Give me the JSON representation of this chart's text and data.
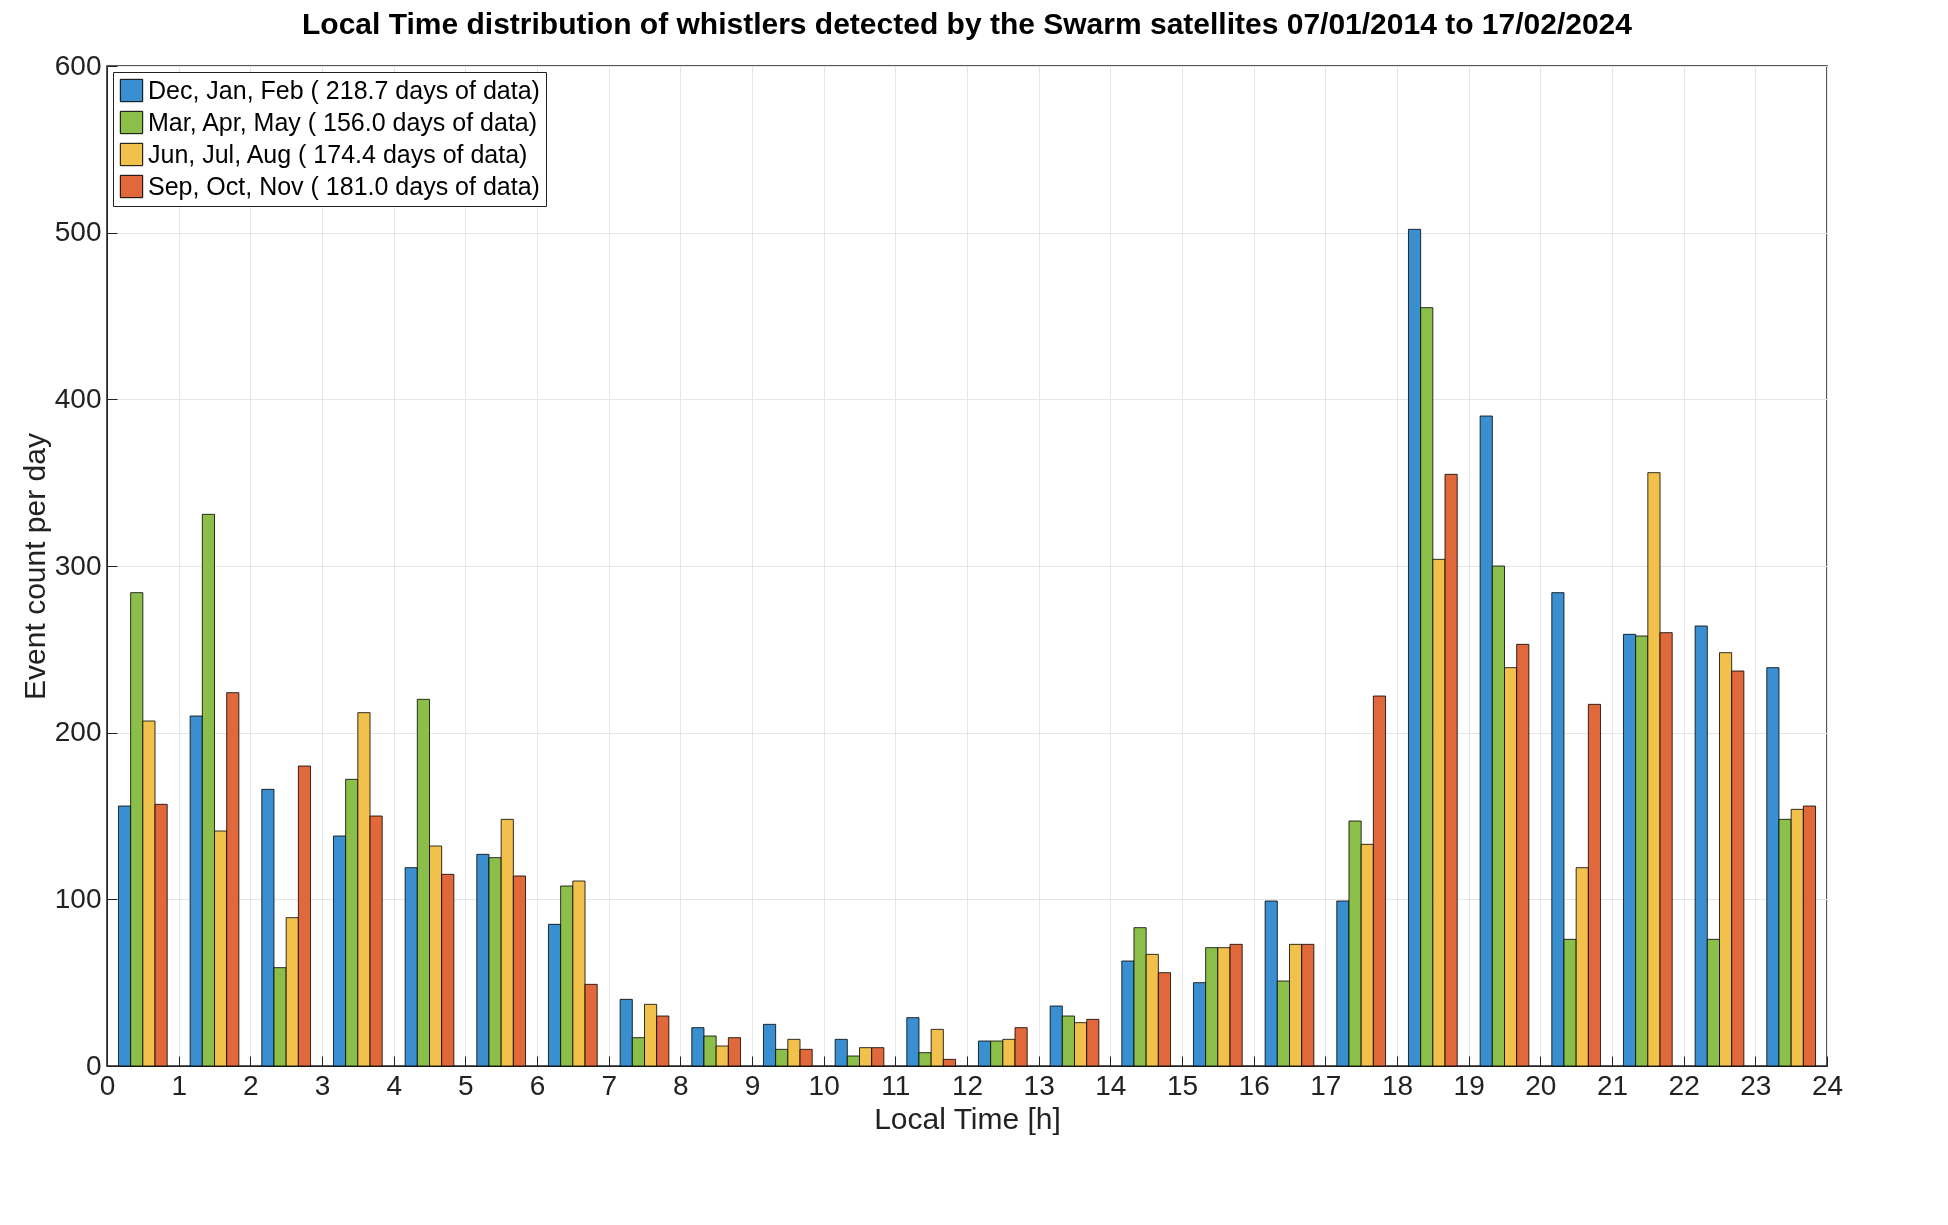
{
  "chart_data": {
    "type": "bar",
    "title": "Local Time distribution of whistlers detected by the Swarm satellites 07/01/2014 to 17/02/2024",
    "xlabel": "Local Time [h]",
    "ylabel": "Event count per day",
    "x": [
      0.5,
      1.5,
      2.5,
      3.5,
      4.5,
      5.5,
      6.5,
      7.5,
      8.5,
      9.5,
      10.5,
      11.5,
      12.5,
      13.5,
      14.5,
      15.5,
      16.5,
      17.5,
      18.5,
      19.5,
      20.5,
      21.5,
      22.5,
      23.5
    ],
    "series": [
      {
        "name": "Dec, Jan, Feb ( 218.7 days of data)",
        "color": "#3a8fd0",
        "values": [
          156,
          210,
          166,
          138,
          119,
          127,
          85,
          40,
          23,
          25,
          16,
          29,
          15,
          36,
          63,
          50,
          99,
          99,
          502,
          390,
          284,
          259,
          264,
          239
        ]
      },
      {
        "name": "Mar, Apr, May ( 156.0 days of data)",
        "color": "#8cbf4a",
        "values": [
          284,
          331,
          59,
          172,
          220,
          125,
          108,
          17,
          18,
          10,
          6,
          8,
          15,
          30,
          83,
          71,
          51,
          147,
          455,
          300,
          76,
          258,
          76,
          148
        ]
      },
      {
        "name": "Jun, Jul, Aug ( 174.4 days of data)",
        "color": "#f2c14b",
        "values": [
          207,
          141,
          89,
          212,
          132,
          148,
          111,
          37,
          12,
          16,
          11,
          22,
          16,
          26,
          67,
          71,
          73,
          133,
          304,
          239,
          119,
          356,
          248,
          154
        ]
      },
      {
        "name": "Sep, Oct, Nov ( 181.0 days of data)",
        "color": "#e0683a",
        "values": [
          157,
          224,
          180,
          150,
          115,
          114,
          49,
          30,
          17,
          10,
          11,
          4,
          23,
          28,
          56,
          73,
          73,
          222,
          355,
          253,
          217,
          260,
          237,
          156
        ]
      }
    ],
    "xlim": [
      0,
      24
    ],
    "xticks": [
      0,
      1,
      2,
      3,
      4,
      5,
      6,
      7,
      8,
      9,
      10,
      11,
      12,
      13,
      14,
      15,
      16,
      17,
      18,
      19,
      20,
      21,
      22,
      23,
      24
    ],
    "ylim": [
      0,
      600
    ],
    "yticks": [
      0,
      100,
      200,
      300,
      400,
      500,
      600
    ],
    "grid": true,
    "legend": "top left"
  }
}
